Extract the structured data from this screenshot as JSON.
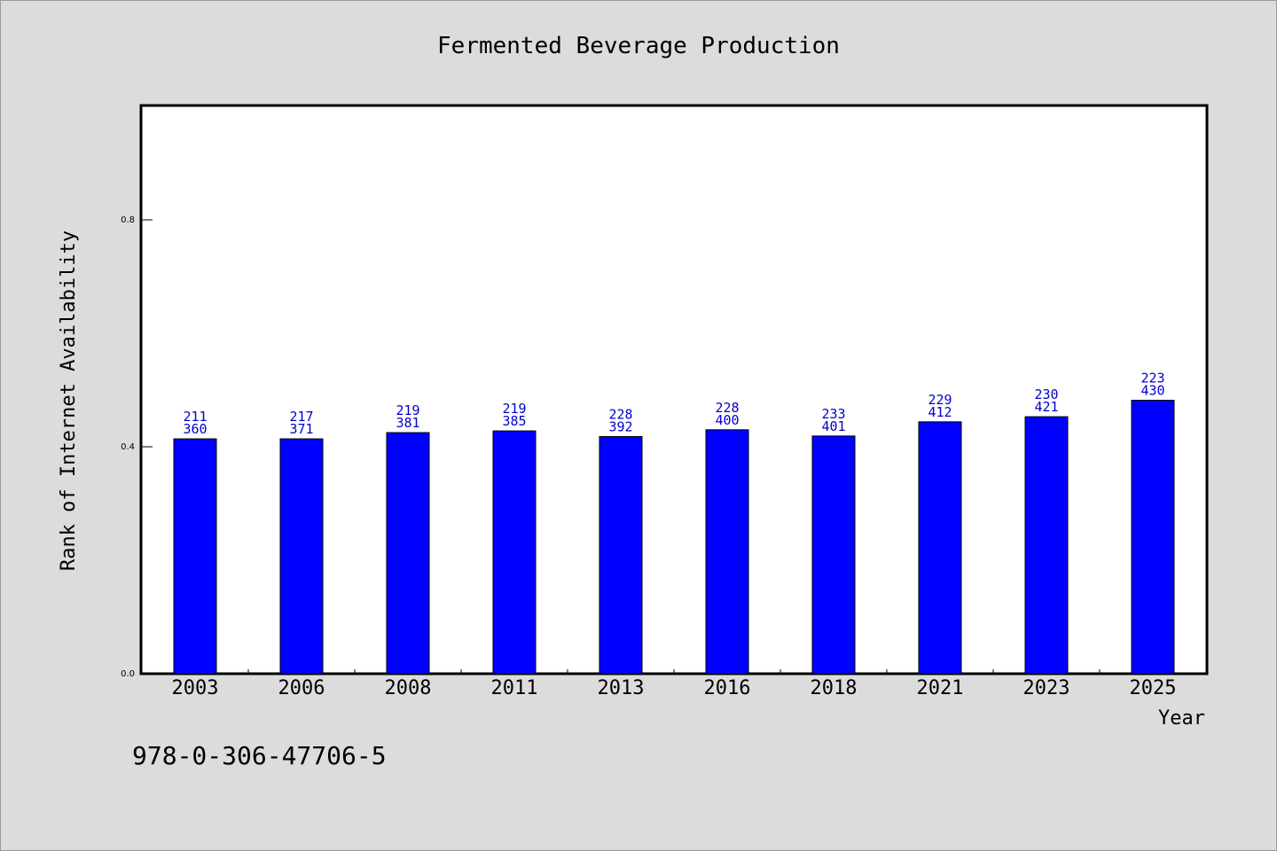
{
  "chart_data": {
    "type": "bar",
    "title": "Fermented Beverage Production",
    "xlabel": "Year",
    "ylabel": "Rank of Internet Availability",
    "categories": [
      "2003",
      "2006",
      "2008",
      "2011",
      "2013",
      "2016",
      "2018",
      "2021",
      "2023",
      "2025"
    ],
    "values": [
      0.414,
      0.414,
      0.425,
      0.428,
      0.418,
      0.43,
      0.419,
      0.444,
      0.453,
      0.482
    ],
    "label_top": [
      "211",
      "217",
      "219",
      "219",
      "228",
      "228",
      "233",
      "229",
      "230",
      "223"
    ],
    "label_bottom": [
      "360",
      "371",
      "381",
      "385",
      "392",
      "400",
      "401",
      "412",
      "421",
      "430"
    ],
    "ylim": [
      0,
      1.0
    ],
    "yticks": [
      0.0,
      0.4,
      0.8
    ],
    "ytick_labels": [
      "0.0",
      "0.4",
      "0.8"
    ],
    "grid": false,
    "legend": "none",
    "colors": {
      "bar": "#0000ff",
      "data_label": "#0000cc",
      "background": "#dcdcdc",
      "plot_background": "#ffffff"
    }
  },
  "footer": {
    "isbn": "978-0-306-47706-5"
  }
}
